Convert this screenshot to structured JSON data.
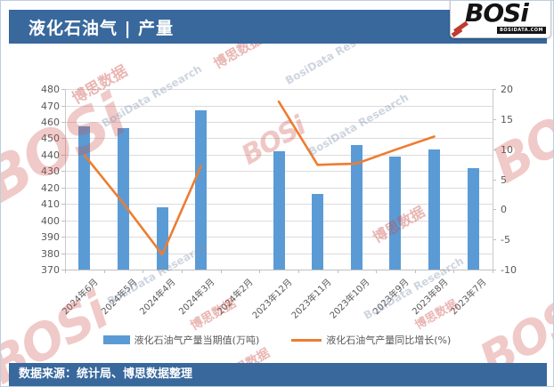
{
  "header": {
    "title": "液化石油气 | 产量",
    "logo": {
      "text": "BOSi",
      "domain": "BOSIDATA.COM"
    }
  },
  "footer": {
    "text": "数据来源：统计局、博思数据整理"
  },
  "watermark": {
    "brand": "BOSi",
    "cn": "博思数据",
    "en": "BosiData Research"
  },
  "colors": {
    "header_bg": "#38689C",
    "bar": "#5B9BD5",
    "line": "#ED7D31",
    "grid": "#DBDBDB",
    "axis_text": "#595959",
    "watermark_red": "#C94842",
    "watermark_gray": "#7D91AC"
  },
  "chart_data": {
    "type": "bar",
    "title": "液化石油气 | 产量",
    "categories": [
      "2024年6月",
      "2024年5月",
      "2024年4月",
      "2024年3月",
      "2024年2月",
      "2023年12月",
      "2023年11月",
      "2023年10月",
      "2023年9月",
      "2023年8月",
      "2023年7月"
    ],
    "series": [
      {
        "name": "液化石油气产量当期值(万吨)",
        "type": "bar",
        "axis": "left",
        "color": "#5B9BD5",
        "values": [
          457,
          456,
          408,
          467,
          null,
          442,
          416,
          446,
          439,
          443,
          432
        ]
      },
      {
        "name": "液化石油气产量同比增长(%)",
        "type": "line",
        "axis": "right",
        "color": "#ED7D31",
        "values": [
          9,
          1,
          -7.5,
          7.2,
          null,
          17.9,
          7.4,
          7.6,
          9.9,
          12.1,
          null
        ]
      }
    ],
    "left_axis": {
      "min": 370,
      "max": 480,
      "step": 10
    },
    "right_axis": {
      "min": -10,
      "max": 20,
      "step": 5
    },
    "grid": true,
    "legend_position": "bottom",
    "x_label_rotation": -45
  }
}
